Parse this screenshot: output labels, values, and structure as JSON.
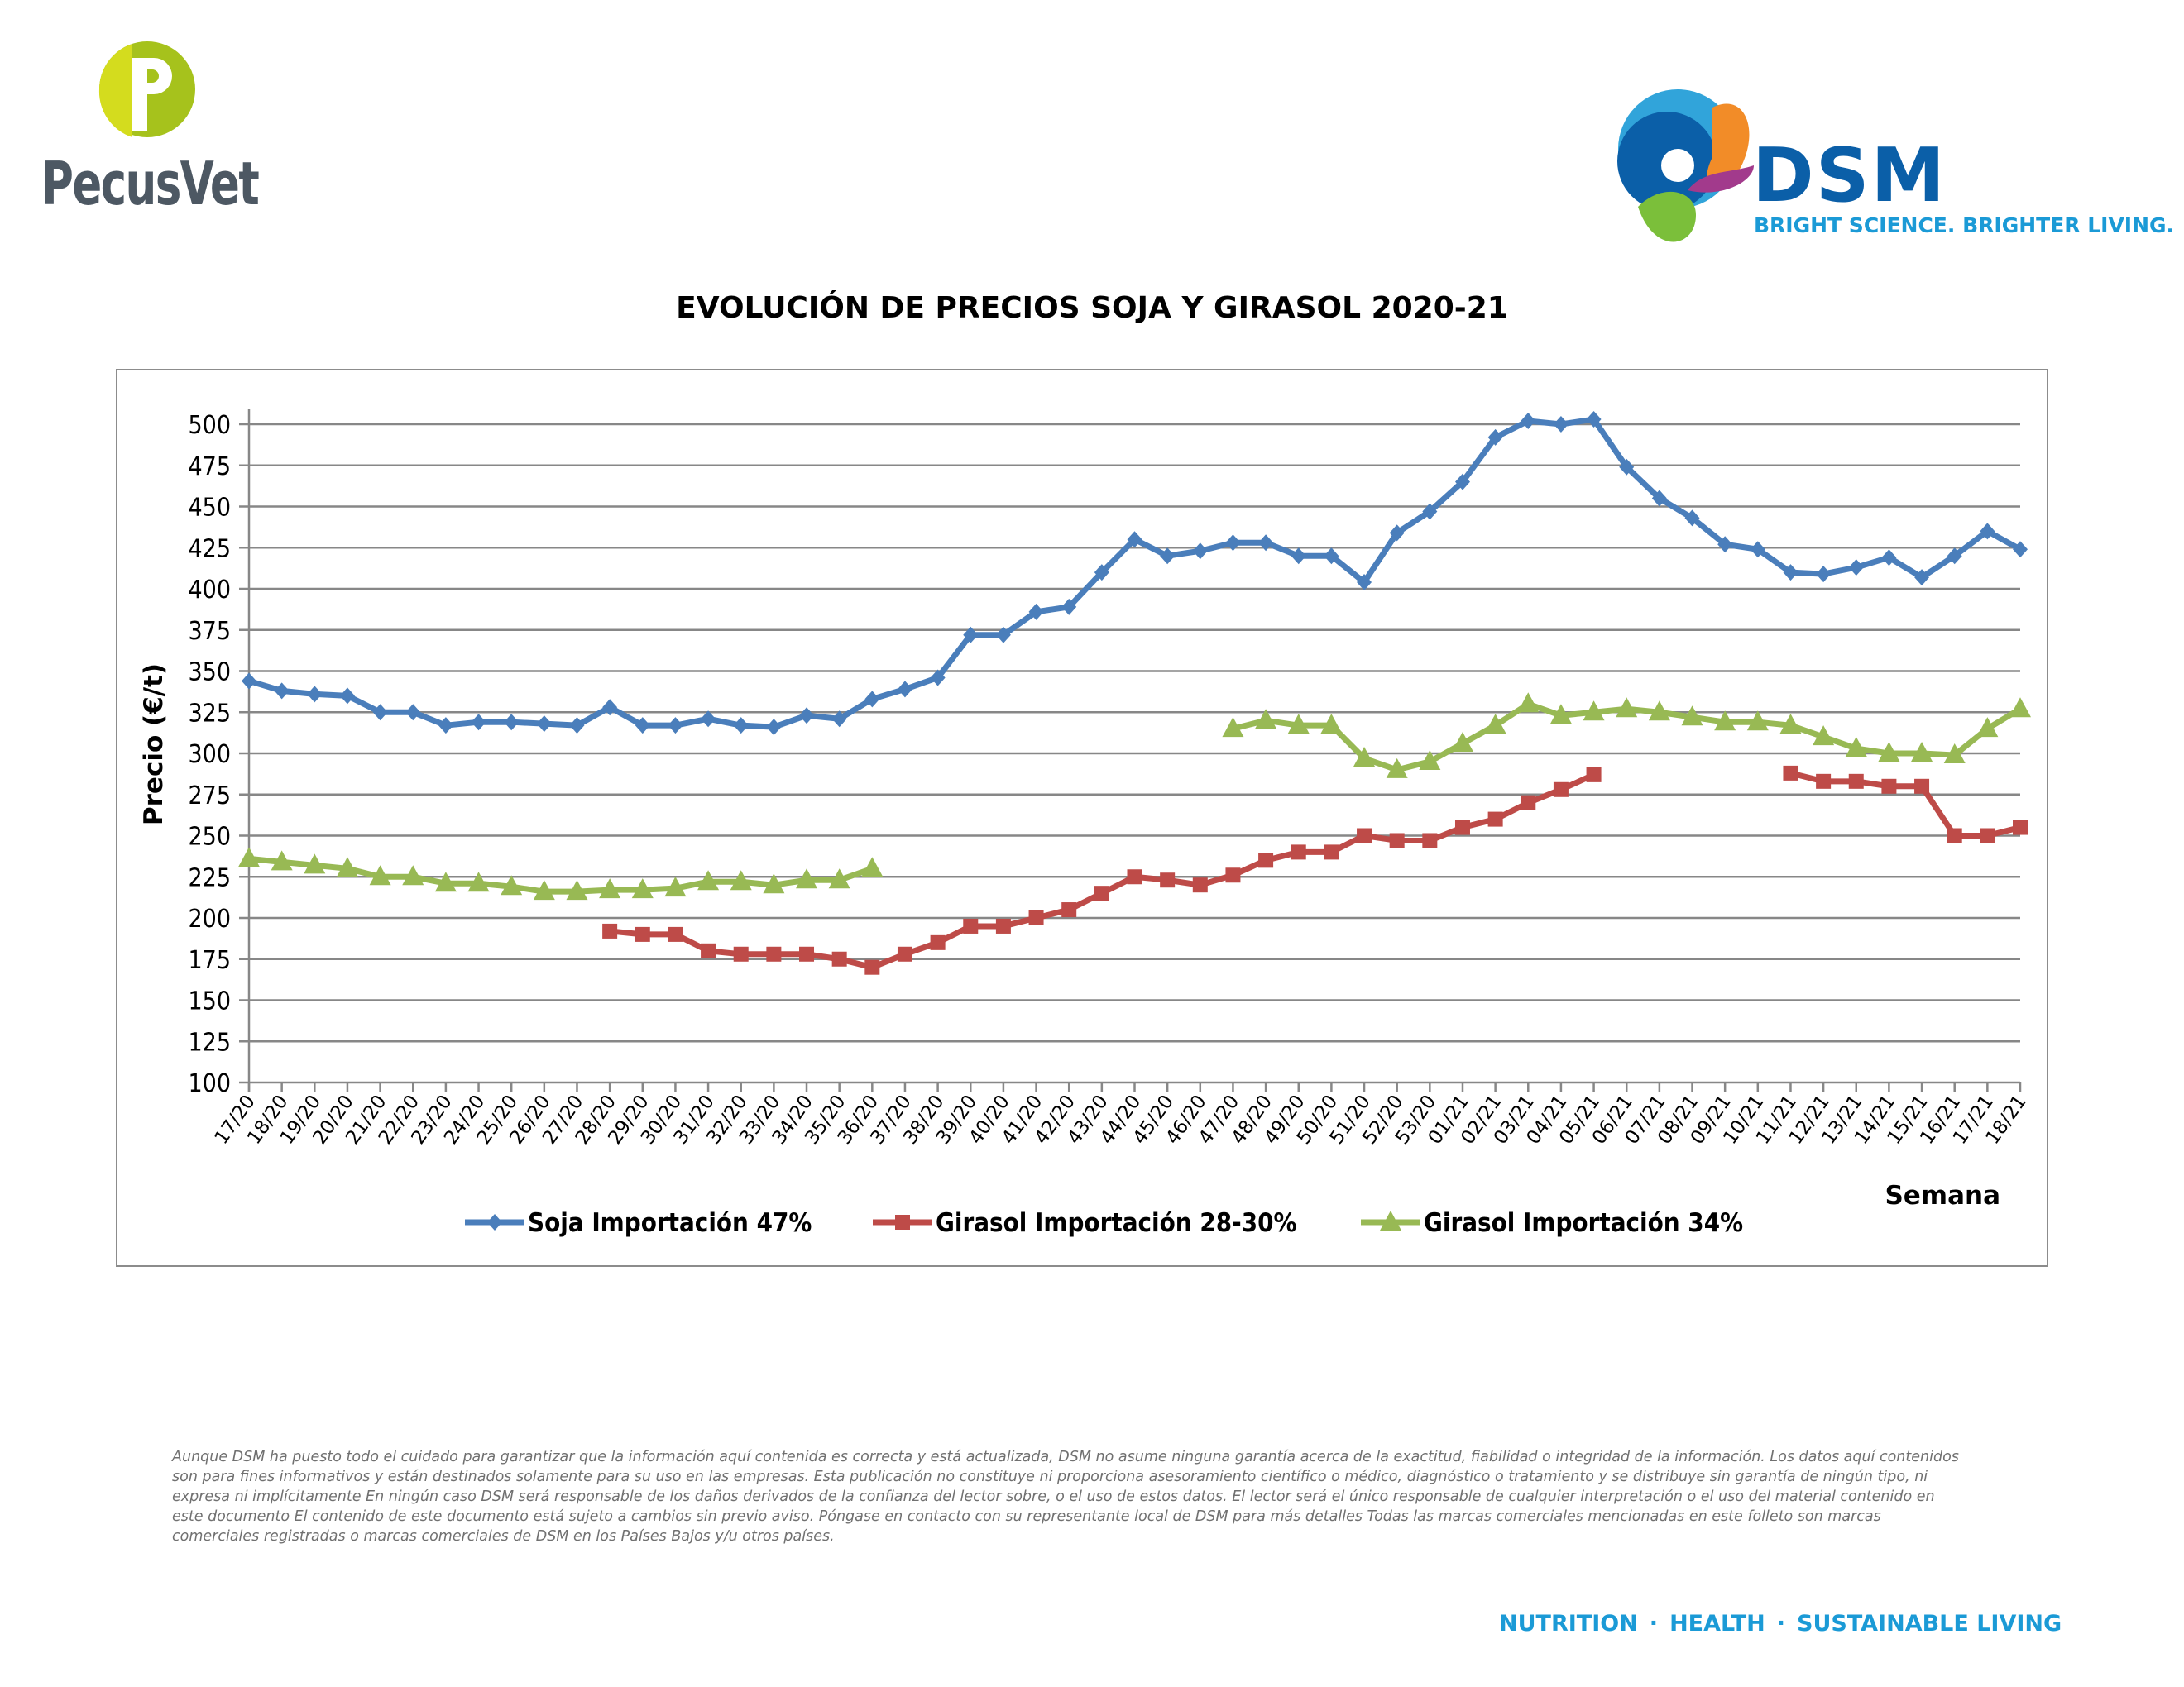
{
  "header": {
    "left_logo": "PecusVet",
    "right_logo": "DSM",
    "right_logo_tagline": "BRIGHT SCIENCE. BRIGHTER LIVING."
  },
  "chart_data": {
    "type": "line",
    "title": "EVOLUCIÓN DE PRECIOS SOJA Y GIRASOL 2020-21",
    "xlabel": "Semana",
    "ylabel": "Precio (€/t)",
    "ylim": [
      100,
      500
    ],
    "yticks": [
      100,
      125,
      150,
      175,
      200,
      225,
      250,
      275,
      300,
      325,
      350,
      375,
      400,
      425,
      450,
      475,
      500
    ],
    "grid": true,
    "legend_position": "bottom",
    "categories": [
      "17/20",
      "18/20",
      "19/20",
      "20/20",
      "21/20",
      "22/20",
      "23/20",
      "24/20",
      "25/20",
      "26/20",
      "27/20",
      "28/20",
      "29/20",
      "30/20",
      "31/20",
      "32/20",
      "33/20",
      "34/20",
      "35/20",
      "36/20",
      "37/20",
      "38/20",
      "39/20",
      "40/20",
      "41/20",
      "42/20",
      "43/20",
      "44/20",
      "45/20",
      "46/20",
      "47/20",
      "48/20",
      "49/20",
      "50/20",
      "51/20",
      "52/20",
      "53/20",
      "01/21",
      "02/21",
      "03/21",
      "04/21",
      "05/21",
      "06/21",
      "07/21",
      "08/21",
      "09/21",
      "10/21",
      "11/21",
      "12/21",
      "13/21",
      "14/21",
      "15/21",
      "16/21",
      "17/21",
      "18/21"
    ],
    "series": [
      {
        "name": "Soja Importación 47%",
        "color": "#4a7ebb",
        "marker": "diamond",
        "values": [
          344,
          338,
          336,
          335,
          325,
          325,
          317,
          319,
          319,
          318,
          317,
          328,
          317,
          317,
          321,
          317,
          316,
          323,
          321,
          333,
          339,
          346,
          372,
          372,
          386,
          389,
          410,
          430,
          420,
          423,
          428,
          428,
          420,
          420,
          404,
          434,
          447,
          465,
          492,
          502,
          500,
          503,
          474,
          455,
          443,
          427,
          424,
          410,
          409,
          413,
          419,
          407,
          420,
          435,
          424
        ]
      },
      {
        "name": "Girasol Importación 28-30%",
        "color": "#be4b48",
        "marker": "square",
        "values": [
          null,
          null,
          null,
          null,
          null,
          null,
          null,
          null,
          null,
          null,
          null,
          192,
          190,
          190,
          180,
          178,
          178,
          178,
          175,
          170,
          178,
          185,
          195,
          195,
          200,
          205,
          215,
          225,
          223,
          220,
          226,
          235,
          240,
          240,
          250,
          247,
          247,
          255,
          260,
          270,
          278,
          287,
          null,
          null,
          null,
          null,
          null,
          288,
          283,
          283,
          280,
          280,
          250,
          250,
          255
        ]
      },
      {
        "name": "Girasol Importación 34%",
        "color": "#98b954",
        "marker": "triangle",
        "values": [
          236,
          234,
          232,
          230,
          225,
          225,
          221,
          221,
          219,
          216,
          216,
          217,
          217,
          218,
          222,
          222,
          220,
          223,
          223,
          230,
          null,
          null,
          null,
          null,
          null,
          null,
          null,
          null,
          null,
          null,
          315,
          320,
          317,
          317,
          297,
          290,
          295,
          306,
          317,
          330,
          323,
          325,
          327,
          325,
          322,
          319,
          319,
          317,
          310,
          303,
          300,
          300,
          299,
          315,
          327
        ]
      }
    ]
  },
  "disclaimer": "Aunque DSM ha puesto todo el cuidado para garantizar que la información aquí contenida es correcta y está actualizada, DSM no asume ninguna garantía acerca de la exactitud, fiabilidad o integridad de la información. Los datos aquí contenidos son para fines informativos y están destinados solamente para su uso en las empresas. Esta publicación no constituye ni proporciona asesoramiento científico o médico, diagnóstico o tratamiento y se distribuye sin garantía de ningún tipo, ni expresa ni implícitamente En ningún caso DSM será responsable de los daños derivados de la confianza del lector sobre, o el uso de estos datos. El lector será el único responsable de cualquier interpretación o el uso del material contenido en este documento El contenido de este documento está sujeto a cambios sin previo aviso. Póngase en contacto con su representante local de DSM para más detalles Todas las marcas comerciales mencionadas en este folleto son marcas comerciales registradas o marcas comerciales de DSM en los Países Bajos y/u otros países.",
  "footer": {
    "tagline": [
      "NUTRITION",
      "HEALTH",
      "SUSTAINABLE LIVING"
    ],
    "separator": "·"
  }
}
